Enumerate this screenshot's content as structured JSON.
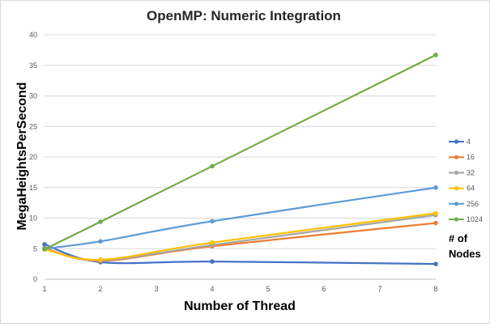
{
  "chart_data": {
    "type": "line",
    "title": "OpenMP: Numeric Integration",
    "xlabel": "Number of Thread",
    "ylabel": "MegaHeightsPerSecond",
    "x_ticks": [
      "1",
      "2",
      "3",
      "4",
      "5",
      "6",
      "7",
      "8"
    ],
    "y_ticks": [
      "0",
      "5",
      "10",
      "15",
      "20",
      "25",
      "30",
      "35",
      "40"
    ],
    "xlim": [
      1,
      8
    ],
    "ylim": [
      0,
      40
    ],
    "grid": "horizontal",
    "legend_position": "right",
    "legend_title_lines": [
      "# of",
      "Nodes"
    ],
    "x": [
      1,
      2,
      4,
      8
    ],
    "series": [
      {
        "name": "4",
        "color": "#4472c4",
        "values": [
          5.7,
          2.8,
          2.9,
          2.5
        ]
      },
      {
        "name": "16",
        "color": "#ed7d31",
        "values": [
          5.1,
          3.0,
          5.4,
          9.2
        ]
      },
      {
        "name": "32",
        "color": "#a5a5a5",
        "values": [
          5.0,
          3.1,
          5.6,
          10.5
        ]
      },
      {
        "name": "64",
        "color": "#ffc000",
        "values": [
          4.9,
          3.2,
          6.0,
          10.8
        ]
      },
      {
        "name": "256",
        "color": "#5b9bd5",
        "values": [
          5.0,
          6.2,
          9.5,
          15.0
        ]
      },
      {
        "name": "1024",
        "color": "#70ad47",
        "values": [
          4.9,
          9.4,
          18.5,
          36.7
        ]
      }
    ]
  }
}
